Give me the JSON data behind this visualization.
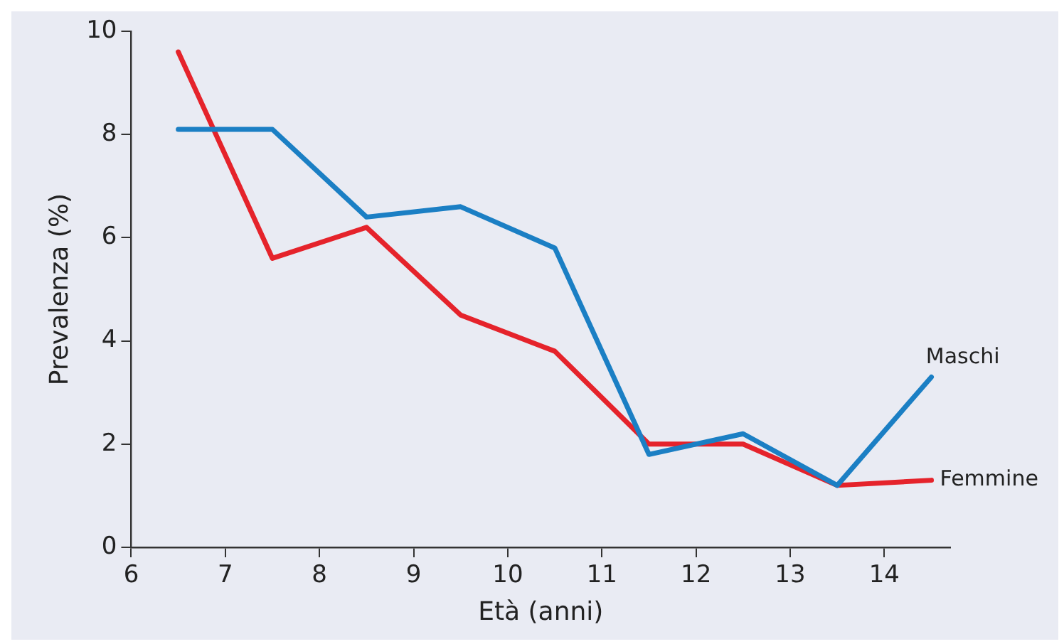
{
  "chart_data": {
    "type": "line",
    "xlabel": "Età (anni)",
    "ylabel": "Prevalenza (%)",
    "x": [
      6.5,
      7.5,
      8.5,
      9.5,
      10.5,
      11.5,
      12.5,
      13.5,
      14.5
    ],
    "series": [
      {
        "name": "Maschi",
        "color": "#1b7fc4",
        "values": [
          8.1,
          8.1,
          6.4,
          6.6,
          5.8,
          1.8,
          2.2,
          1.2,
          3.3
        ]
      },
      {
        "name": "Femmine",
        "color": "#e5232b",
        "values": [
          9.6,
          5.6,
          6.2,
          4.5,
          3.8,
          2.0,
          2.0,
          1.2,
          1.3
        ]
      }
    ],
    "xlim": [
      6,
      14.7
    ],
    "xticks": [
      6,
      7,
      8,
      9,
      10,
      11,
      12,
      13,
      14
    ],
    "ylim": [
      0,
      10
    ],
    "yticks": [
      0,
      2,
      4,
      6,
      8,
      10
    ],
    "grid": false,
    "legend": false,
    "marker": "none",
    "line_style": "solid"
  }
}
